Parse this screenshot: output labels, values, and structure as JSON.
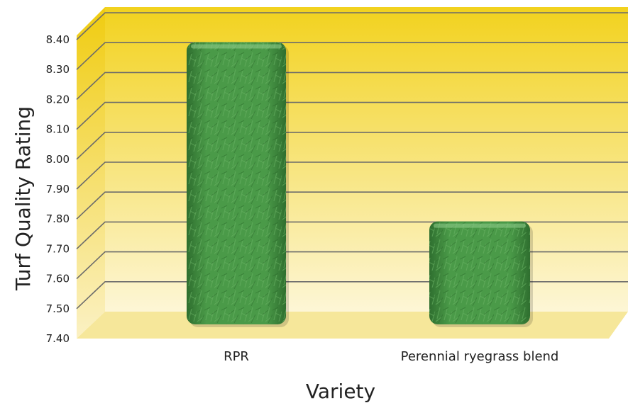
{
  "chart_data": {
    "type": "bar",
    "title": "",
    "xlabel": "Variety",
    "ylabel": "Turf Quality Rating",
    "categories": [
      "RPR",
      "Perennial ryegrass blend"
    ],
    "values": [
      8.38,
      7.78
    ],
    "ylim": [
      7.4,
      8.4
    ],
    "yticks": [
      "7.40",
      "7.50",
      "7.60",
      "7.70",
      "7.80",
      "7.90",
      "8.00",
      "8.10",
      "8.20",
      "8.30",
      "8.40"
    ],
    "grid": true,
    "legend": "none",
    "colors": {
      "bar": "#3f8f3f",
      "bar_dark": "#2f6f2f",
      "back_top": "#f2d21e",
      "back_bottom": "#fdf6d6",
      "floor": "#f6e79a",
      "gridline": "#6b6b6b"
    }
  }
}
